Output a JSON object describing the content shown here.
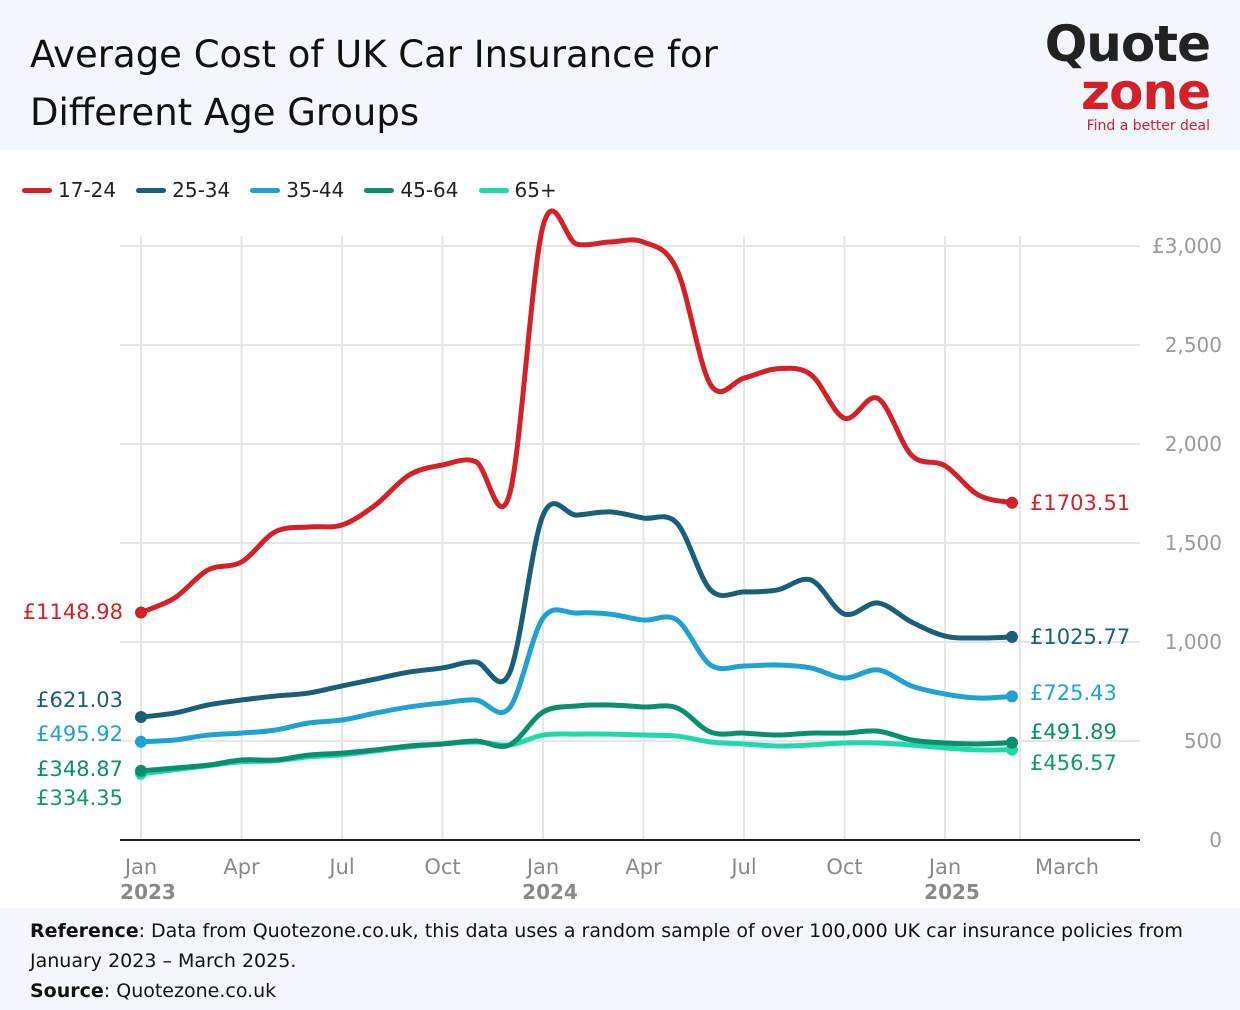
{
  "header": {
    "title": "Average Cost of UK Car Insurance for Different Age Groups",
    "logo_top": "Quote",
    "logo_bottom": "zone",
    "tagline": "Find a better deal"
  },
  "footer": {
    "ref_label": "Reference",
    "ref_text": ": Data from Quotezone.co.uk, this data uses a random sample of over 100,000 UK car insurance policies from January 2023 – March 2025.",
    "src_label": "Source",
    "src_text": ": Quotezone.co.uk"
  },
  "chart_data": {
    "type": "line",
    "title": "Average Cost of UK Car Insurance for Different Age Groups",
    "x": [
      "2023-01",
      "2023-02",
      "2023-03",
      "2023-04",
      "2023-05",
      "2023-06",
      "2023-07",
      "2023-08",
      "2023-09",
      "2023-10",
      "2023-11",
      "2023-12",
      "2024-01",
      "2024-02",
      "2024-03",
      "2024-04",
      "2024-05",
      "2024-06",
      "2024-07",
      "2024-08",
      "2024-09",
      "2024-10",
      "2024-11",
      "2024-12",
      "2025-01",
      "2025-02",
      "2025-03"
    ],
    "x_ticks": [
      {
        "at": "2023-01",
        "label": "Jan",
        "year": "2023"
      },
      {
        "at": "2023-04",
        "label": "Apr"
      },
      {
        "at": "2023-07",
        "label": "Jul"
      },
      {
        "at": "2023-10",
        "label": "Oct"
      },
      {
        "at": "2024-01",
        "label": "Jan",
        "year": "2024"
      },
      {
        "at": "2024-04",
        "label": "Apr"
      },
      {
        "at": "2024-07",
        "label": "Jul"
      },
      {
        "at": "2024-10",
        "label": "Oct"
      },
      {
        "at": "2025-01",
        "label": "Jan",
        "year": "2025"
      },
      {
        "at": "2025-03",
        "label": "March"
      }
    ],
    "y_ticks": [
      {
        "v": 0,
        "label": "0"
      },
      {
        "v": 500,
        "label": "500"
      },
      {
        "v": 1000,
        "label": "1,000"
      },
      {
        "v": 1500,
        "label": "1,500"
      },
      {
        "v": 2000,
        "label": "2,000"
      },
      {
        "v": 2500,
        "label": "2,500"
      },
      {
        "v": 3000,
        "label": "£3,000"
      }
    ],
    "ylim": [
      0,
      3000
    ],
    "grid": true,
    "legend_position": "top-left",
    "series": [
      {
        "name": "17-24",
        "color": "#d42127",
        "start_label": "£1148.98",
        "end_label": "£1703.51",
        "values": [
          1148.98,
          1222,
          1364,
          1404,
          1556,
          1581,
          1591,
          1692,
          1843,
          1894,
          1910,
          1745,
          3100,
          3010,
          3020,
          3020,
          2880,
          2300,
          2333,
          2380,
          2350,
          2130,
          2230,
          1944,
          1890,
          1742,
          1703.51
        ]
      },
      {
        "name": "25-34",
        "color": "#1a5e7a",
        "start_label": "£621.03",
        "end_label": "£1025.77",
        "values": [
          621.03,
          641,
          682,
          707,
          727,
          742,
          778,
          813,
          848,
          869,
          899,
          843,
          1640,
          1641,
          1657,
          1626,
          1600,
          1263,
          1253,
          1263,
          1313,
          1141,
          1197,
          1101,
          1030,
          1020,
          1025.77
        ]
      },
      {
        "name": "35-44",
        "color": "#1da2d3",
        "start_label": "£495.92",
        "end_label": "£725.43",
        "values": [
          495.92,
          505,
          530,
          540,
          555,
          591,
          606,
          641,
          672,
          692,
          707,
          667,
          1120,
          1146,
          1141,
          1111,
          1111,
          884,
          879,
          884,
          869,
          818,
          859,
          778,
          737,
          717,
          725.43
        ]
      },
      {
        "name": "45-64",
        "color": "#0a8f6e",
        "start_label": "£348.87",
        "end_label": "£491.89",
        "values": [
          348.87,
          363,
          378,
          404,
          404,
          429,
          439,
          455,
          475,
          485,
          500,
          480,
          646,
          677,
          682,
          672,
          667,
          545,
          540,
          530,
          540,
          540,
          550,
          505,
          490,
          485,
          491.89
        ]
      },
      {
        "name": "65+",
        "color": "#1ddba8",
        "label_color": "#0f9a74",
        "start_label": "£334.35",
        "end_label": "£456.57",
        "values": [
          334.35,
          355,
          375,
          395,
          400,
          420,
          430,
          450,
          470,
          485,
          495,
          480,
          530,
          535,
          535,
          530,
          525,
          495,
          485,
          475,
          480,
          490,
          490,
          480,
          465,
          455,
          456.57
        ]
      }
    ]
  }
}
